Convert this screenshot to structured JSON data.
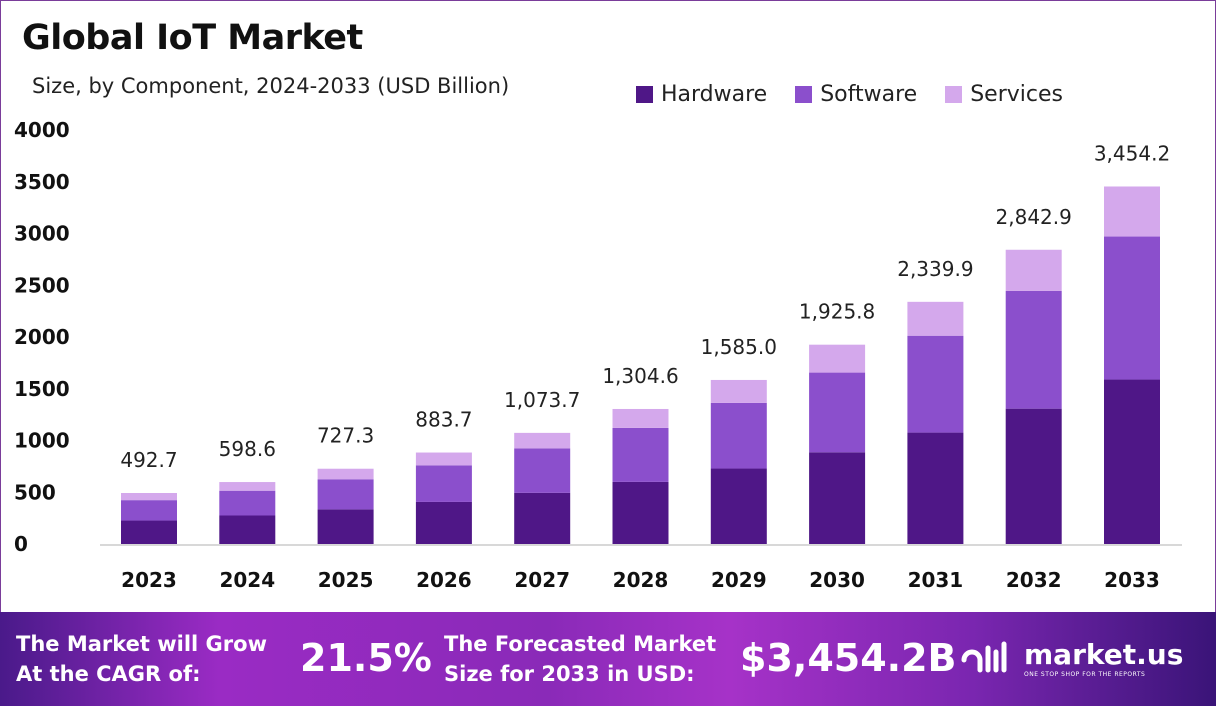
{
  "chart_data": {
    "type": "bar",
    "stacked": true,
    "title": "Global IoT Market",
    "subtitle": "Size, by Component, 2024-2033 (USD Billion)",
    "xlabel": "",
    "ylabel": "",
    "ylim": [
      0,
      4000
    ],
    "yticks": [
      0,
      500,
      1000,
      1500,
      2000,
      2500,
      3000,
      3500,
      4000
    ],
    "grid": false,
    "legend_position": "top-right",
    "categories": [
      "2023",
      "2024",
      "2025",
      "2026",
      "2027",
      "2028",
      "2029",
      "2030",
      "2031",
      "2032",
      "2033"
    ],
    "totals": [
      "492.7",
      "598.6",
      "727.3",
      "883.7",
      "1,073.7",
      "1,304.6",
      "1,585.0",
      "1,925.8",
      "2,339.9",
      "2,842.9",
      "3,454.2"
    ],
    "series": [
      {
        "name": "Hardware",
        "color": "#4f1787",
        "values": [
          226.6,
          275.4,
          334.6,
          406.5,
          493.9,
          600.1,
          729.1,
          885.9,
          1076.4,
          1307.7,
          1588.9
        ]
      },
      {
        "name": "Software",
        "color": "#8b4fcc",
        "values": [
          197.1,
          239.4,
          290.9,
          353.5,
          429.5,
          521.8,
          634.0,
          770.3,
          936.0,
          1137.2,
          1381.7
        ]
      },
      {
        "name": "Services",
        "color": "#d4a8ec",
        "values": [
          69.0,
          83.8,
          101.8,
          123.7,
          150.3,
          182.7,
          221.9,
          269.6,
          327.5,
          398.0,
          483.6
        ]
      }
    ]
  },
  "banner": {
    "cagr_label_1": "The Market will Grow",
    "cagr_label_2": "At the CAGR of:",
    "cagr_value": "21.5%",
    "forecast_label_1": "The Forecasted Market",
    "forecast_label_2": "Size for 2033 in USD:",
    "forecast_value": "$3,454.2B",
    "logo_name": "market.us",
    "logo_tagline": "ONE STOP SHOP FOR THE REPORTS"
  }
}
